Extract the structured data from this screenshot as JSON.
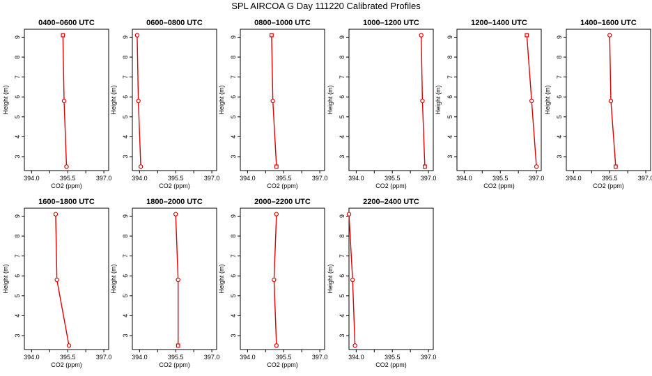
{
  "title": "SPL AIRCOA G  Day 111220  Calibrated Profiles",
  "colors": {
    "series": "#e00000",
    "axis": "#000000"
  },
  "chart_data": [
    {
      "type": "line",
      "title": "0400–0600 UTC",
      "xlabel": "CO2 (ppm)",
      "ylabel": "Height (m)",
      "xlim": [
        393.7,
        397.2
      ],
      "ylim": [
        2.3,
        9.4
      ],
      "xticks": [
        "394.0",
        "395.5",
        "397.0"
      ],
      "yticks": [
        "3",
        "4",
        "5",
        "6",
        "7",
        "8",
        "9"
      ],
      "points": [
        {
          "x": 395.3,
          "y": 9.1,
          "marker": "square"
        },
        {
          "x": 395.35,
          "y": 5.8,
          "marker": "circle"
        },
        {
          "x": 395.45,
          "y": 2.5,
          "marker": "circle"
        }
      ]
    },
    {
      "type": "line",
      "title": "0600–0800 UTC",
      "xlabel": "CO2 (ppm)",
      "ylabel": "Height (m)",
      "xlim": [
        393.7,
        397.2
      ],
      "ylim": [
        2.3,
        9.4
      ],
      "xticks": [
        "394.0",
        "395.5",
        "397.0"
      ],
      "yticks": [
        "3",
        "4",
        "5",
        "6",
        "7",
        "8",
        "9"
      ],
      "points": [
        {
          "x": 393.9,
          "y": 9.1,
          "marker": "circle"
        },
        {
          "x": 393.95,
          "y": 5.8,
          "marker": "circle"
        },
        {
          "x": 394.05,
          "y": 2.5,
          "marker": "circle"
        }
      ]
    },
    {
      "type": "line",
      "title": "0800–1000 UTC",
      "xlabel": "CO2 (ppm)",
      "ylabel": "Height (m)",
      "xlim": [
        393.7,
        397.2
      ],
      "ylim": [
        2.3,
        9.4
      ],
      "xticks": [
        "394.0",
        "395.5",
        "397.0"
      ],
      "yticks": [
        "3",
        "4",
        "5",
        "6",
        "7",
        "8",
        "9"
      ],
      "points": [
        {
          "x": 395.0,
          "y": 9.1,
          "marker": "square"
        },
        {
          "x": 395.05,
          "y": 5.8,
          "marker": "circle"
        },
        {
          "x": 395.2,
          "y": 2.5,
          "marker": "square"
        }
      ]
    },
    {
      "type": "line",
      "title": "1000–1200 UTC",
      "xlabel": "CO2 (ppm)",
      "ylabel": "Height (m)",
      "xlim": [
        393.7,
        397.2
      ],
      "ylim": [
        2.3,
        9.4
      ],
      "xticks": [
        "394.0",
        "395.5",
        "397.0"
      ],
      "yticks": [
        "3",
        "4",
        "5",
        "6",
        "7",
        "8",
        "9"
      ],
      "points": [
        {
          "x": 396.7,
          "y": 9.1,
          "marker": "circle"
        },
        {
          "x": 396.75,
          "y": 5.8,
          "marker": "circle"
        },
        {
          "x": 396.85,
          "y": 2.5,
          "marker": "square"
        }
      ]
    },
    {
      "type": "line",
      "title": "1200–1400 UTC",
      "xlabel": "CO2 (ppm)",
      "ylabel": "Height (m)",
      "xlim": [
        393.7,
        397.2
      ],
      "ylim": [
        2.3,
        9.4
      ],
      "xticks": [
        "394.0",
        "395.5",
        "397.0"
      ],
      "yticks": [
        "3",
        "4",
        "5",
        "6",
        "7",
        "8",
        "9"
      ],
      "points": [
        {
          "x": 396.6,
          "y": 9.1,
          "marker": "square"
        },
        {
          "x": 396.8,
          "y": 5.8,
          "marker": "circle"
        },
        {
          "x": 397.0,
          "y": 2.5,
          "marker": "circle"
        }
      ]
    },
    {
      "type": "line",
      "title": "1400–1600 UTC",
      "xlabel": "CO2 (ppm)",
      "ylabel": "Height (m)",
      "xlim": [
        393.7,
        397.2
      ],
      "ylim": [
        2.3,
        9.4
      ],
      "xticks": [
        "394.0",
        "395.5",
        "397.0"
      ],
      "yticks": [
        "3",
        "4",
        "5",
        "6",
        "7",
        "8",
        "9"
      ],
      "points": [
        {
          "x": 395.5,
          "y": 9.1,
          "marker": "circle"
        },
        {
          "x": 395.55,
          "y": 5.8,
          "marker": "circle"
        },
        {
          "x": 395.75,
          "y": 2.5,
          "marker": "square"
        }
      ]
    },
    {
      "type": "line",
      "title": "1600–1800 UTC",
      "xlabel": "CO2 (ppm)",
      "ylabel": "Height (m)",
      "xlim": [
        393.7,
        397.2
      ],
      "ylim": [
        2.3,
        9.4
      ],
      "xticks": [
        "394.0",
        "395.5",
        "397.0"
      ],
      "yticks": [
        "3",
        "4",
        "5",
        "6",
        "7",
        "8",
        "9"
      ],
      "points": [
        {
          "x": 395.0,
          "y": 9.1,
          "marker": "circle"
        },
        {
          "x": 395.05,
          "y": 5.8,
          "marker": "circle"
        },
        {
          "x": 395.55,
          "y": 2.5,
          "marker": "circle"
        }
      ]
    },
    {
      "type": "line",
      "title": "1800–2000 UTC",
      "xlabel": "CO2 (ppm)",
      "ylabel": "Height (m)",
      "xlim": [
        393.7,
        397.2
      ],
      "ylim": [
        2.3,
        9.4
      ],
      "xticks": [
        "394.0",
        "395.5",
        "397.0"
      ],
      "yticks": [
        "3",
        "4",
        "5",
        "6",
        "7",
        "8",
        "9"
      ],
      "points": [
        {
          "x": 395.5,
          "y": 9.1,
          "marker": "circle"
        },
        {
          "x": 395.6,
          "y": 5.8,
          "marker": "circle"
        },
        {
          "x": 395.6,
          "y": 2.5,
          "marker": "square"
        }
      ]
    },
    {
      "type": "line",
      "title": "2000–2200 UTC",
      "xlabel": "CO2 (ppm)",
      "ylabel": "Height (m)",
      "xlim": [
        393.7,
        397.2
      ],
      "ylim": [
        2.3,
        9.4
      ],
      "xticks": [
        "394.0",
        "395.5",
        "397.0"
      ],
      "yticks": [
        "3",
        "4",
        "5",
        "6",
        "7",
        "8",
        "9"
      ],
      "points": [
        {
          "x": 395.2,
          "y": 9.1,
          "marker": "circle"
        },
        {
          "x": 395.1,
          "y": 5.8,
          "marker": "circle"
        },
        {
          "x": 395.2,
          "y": 2.5,
          "marker": "circle"
        }
      ]
    },
    {
      "type": "line",
      "title": "2200–2400 UTC",
      "xlabel": "CO2 (ppm)",
      "ylabel": "Height (m)",
      "xlim": [
        393.7,
        397.2
      ],
      "ylim": [
        2.3,
        9.4
      ],
      "xticks": [
        "394.0",
        "395.5",
        "397.0"
      ],
      "yticks": [
        "3",
        "4",
        "5",
        "6",
        "7",
        "8",
        "9"
      ],
      "points": [
        {
          "x": 393.7,
          "y": 9.1,
          "marker": "circle"
        },
        {
          "x": 393.85,
          "y": 5.8,
          "marker": "circle"
        },
        {
          "x": 393.95,
          "y": 2.5,
          "marker": "circle"
        }
      ]
    }
  ]
}
